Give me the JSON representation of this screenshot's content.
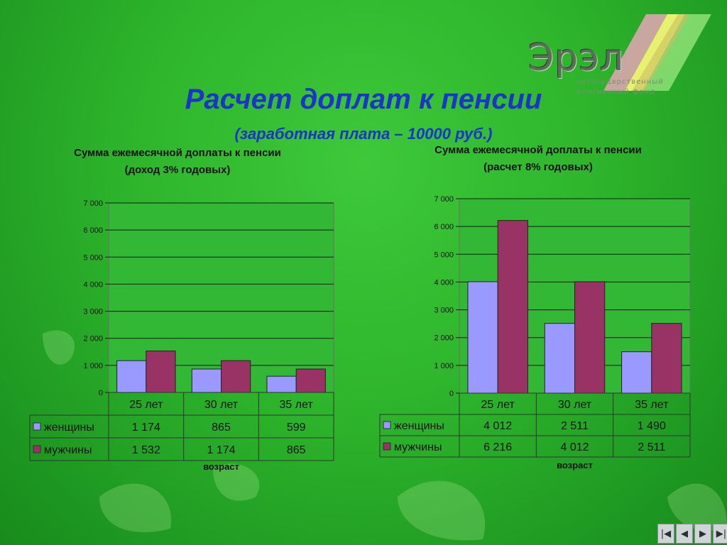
{
  "slide": {
    "title": "Расчет доплат к пенсии",
    "subtitle": "(заработная плата – 10000 руб.)"
  },
  "logo": {
    "word": "Эрэл",
    "line1": "негосударственный",
    "line2": "пенсионный фонд"
  },
  "colors": {
    "women": "#9999ff",
    "men": "#993366",
    "plot_bg": "#32b834",
    "title": "#1a35c8"
  },
  "nav": {
    "first_icon": "first-slide-icon",
    "prev_icon": "prev-slide-icon",
    "next_icon": "next-slide-icon",
    "last_icon": "last-slide-icon"
  },
  "chart_data": [
    {
      "type": "bar",
      "title_line1": "Сумма ежемесячной доплаты к пенсии",
      "title_line2": "(доход 3% годовых)",
      "xlabel": "возраст",
      "categories": [
        "25 лет",
        "30 лет",
        "35 лет"
      ],
      "series": [
        {
          "name": "женщины",
          "values": [
            1174,
            865,
            599
          ],
          "labels": [
            "1 174",
            "865",
            "599"
          ]
        },
        {
          "name": "мужчины",
          "values": [
            1532,
            1174,
            865
          ],
          "labels": [
            "1 532",
            "1 174",
            "865"
          ]
        }
      ],
      "ylim": [
        0,
        7000
      ],
      "yticks": [
        0,
        1000,
        2000,
        3000,
        4000,
        5000,
        6000,
        7000
      ],
      "ytick_labels": [
        "0",
        "1 000",
        "2 000",
        "3 000",
        "4 000",
        "5 000",
        "6 000",
        "7 000"
      ],
      "grid": true,
      "legend": "data-table"
    },
    {
      "type": "bar",
      "title_line1": "Сумма ежемесячной доплаты к пенсии",
      "title_line2": "(расчет 8% годовых)",
      "xlabel": "возраст",
      "categories": [
        "25 лет",
        "30 лет",
        "35 лет"
      ],
      "series": [
        {
          "name": "женщины",
          "values": [
            4012,
            2511,
            1490
          ],
          "labels": [
            "4 012",
            "2 511",
            "1 490"
          ]
        },
        {
          "name": "мужчины",
          "values": [
            6216,
            4012,
            2511
          ],
          "labels": [
            "6 216",
            "4 012",
            "2 511"
          ]
        }
      ],
      "ylim": [
        0,
        7000
      ],
      "yticks": [
        0,
        1000,
        2000,
        3000,
        4000,
        5000,
        6000,
        7000
      ],
      "ytick_labels": [
        "0",
        "1 000",
        "2 000",
        "3 000",
        "4 000",
        "5 000",
        "6 000",
        "7 000"
      ],
      "grid": true,
      "legend": "data-table"
    }
  ]
}
